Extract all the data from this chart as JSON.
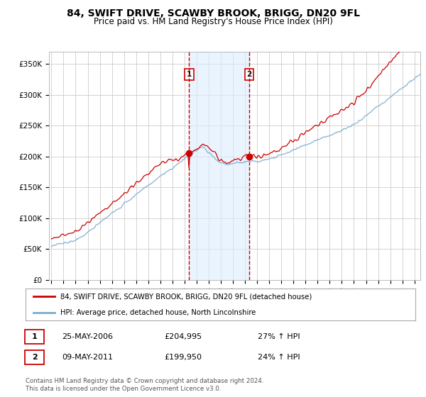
{
  "title": "84, SWIFT DRIVE, SCAWBY BROOK, BRIGG, DN20 9FL",
  "subtitle": "Price paid vs. HM Land Registry's House Price Index (HPI)",
  "title_fontsize": 10,
  "subtitle_fontsize": 8.5,
  "ylabel_ticks": [
    "£0",
    "£50K",
    "£100K",
    "£150K",
    "£200K",
    "£250K",
    "£300K",
    "£350K"
  ],
  "ytick_values": [
    0,
    50000,
    100000,
    150000,
    200000,
    250000,
    300000,
    350000
  ],
  "ylim": [
    0,
    370000
  ],
  "xlim_start": 1994.8,
  "xlim_end": 2025.5,
  "sale1_x": 2006.38,
  "sale1_price": 204995,
  "sale1_label": "1",
  "sale2_x": 2011.35,
  "sale2_price": 199950,
  "sale2_label": "2",
  "legend_line1": "84, SWIFT DRIVE, SCAWBY BROOK, BRIGG, DN20 9FL (detached house)",
  "legend_line2": "HPI: Average price, detached house, North Lincolnshire",
  "annotation1_date": "25-MAY-2006",
  "annotation1_price": "£204,995",
  "annotation1_hpi": "27% ↑ HPI",
  "annotation2_date": "09-MAY-2011",
  "annotation2_price": "£199,950",
  "annotation2_hpi": "24% ↑ HPI",
  "footnote": "Contains HM Land Registry data © Crown copyright and database right 2024.\nThis data is licensed under the Open Government Licence v3.0.",
  "bg_color": "#ffffff",
  "grid_color": "#cccccc",
  "red_color": "#cc0000",
  "blue_color": "#7aaacc",
  "shade_color": "#ddeeff",
  "vline_color": "#cc0000",
  "box_color": "#cc0000"
}
